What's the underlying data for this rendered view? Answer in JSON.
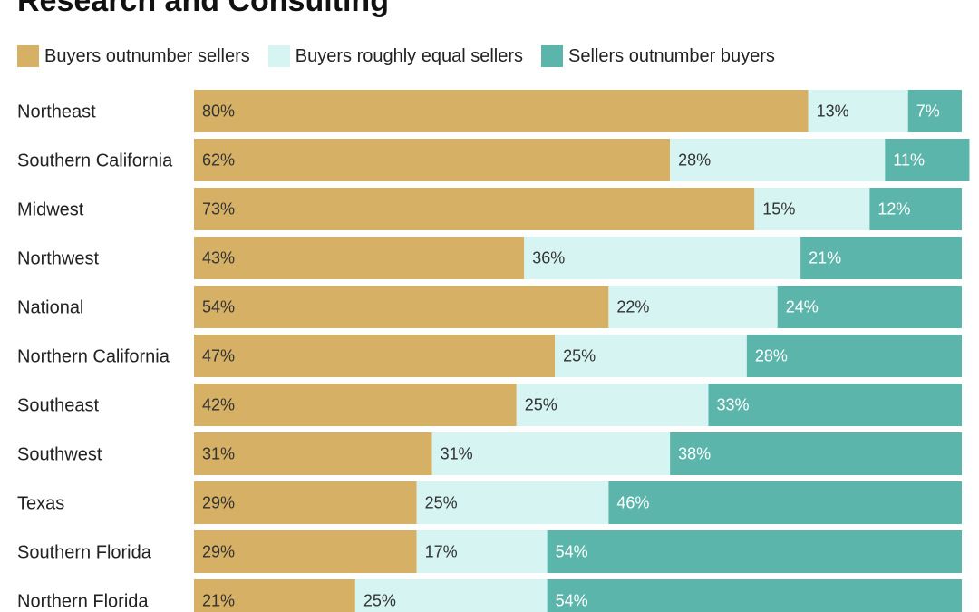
{
  "chart_data": {
    "type": "bar",
    "orientation": "horizontal",
    "stacked": true,
    "title": "Research and Consulting",
    "legend_position": "top-left",
    "grid": false,
    "xlim": [
      0,
      100
    ],
    "value_suffix": "%",
    "categories": [
      "Northeast",
      "Southern California",
      "Midwest",
      "Northwest",
      "National",
      "Northern California",
      "Southeast",
      "Southwest",
      "Texas",
      "Southern Florida",
      "Northern Florida"
    ],
    "series": [
      {
        "name": "Buyers outnumber sellers",
        "color": "#d6b064",
        "label_color": "#333333",
        "values": [
          80,
          62,
          73,
          43,
          54,
          47,
          42,
          31,
          29,
          29,
          21
        ]
      },
      {
        "name": "Buyers roughly equal sellers",
        "color": "#d6f5f2",
        "label_color": "#333333",
        "values": [
          13,
          28,
          15,
          36,
          22,
          25,
          25,
          31,
          25,
          17,
          25
        ]
      },
      {
        "name": "Sellers outnumber buyers",
        "color": "#5bb5ab",
        "label_color": "#ffffff",
        "values": [
          7,
          11,
          12,
          21,
          24,
          28,
          33,
          38,
          46,
          54,
          54
        ]
      }
    ]
  }
}
